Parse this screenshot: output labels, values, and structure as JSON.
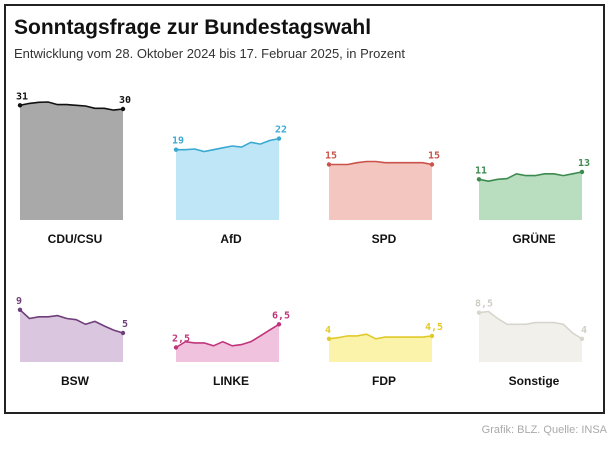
{
  "title": "Sonntagsfrage zur Bundestagswahl",
  "subtitle": "Entwicklung vom 28. Oktober 2024 bis 17. Februar 2025, in Prozent",
  "credit": "Grafik: BLZ. Quelle: INSA",
  "chart_data": {
    "type": "area",
    "title": "Sonntagsfrage zur Bundestagswahl",
    "subtitle": "Entwicklung vom 28. Oktober 2024 bis 17. Februar 2025, in Prozent",
    "xlabel": "",
    "ylabel": "Prozent",
    "x_range": [
      "28. Oktober 2024",
      "17. Februar 2025"
    ],
    "series": [
      {
        "name": "CDU/CSU",
        "start_label": "31",
        "end_label": "30",
        "line": "#111111",
        "fill": "#a9a9a9",
        "labelColor": "#111111",
        "values": [
          31,
          31.5,
          31.8,
          31.9,
          31.2,
          31.2,
          31.0,
          30.8,
          30.2,
          30.2,
          29.7,
          30
        ]
      },
      {
        "name": "AfD",
        "start_label": "19",
        "end_label": "22",
        "line": "#3aa9d2",
        "fill": "#bfe6f6",
        "labelColor": "#3aa9d2",
        "values": [
          19,
          19,
          19.2,
          18.5,
          19,
          19.5,
          20,
          19.7,
          21,
          20.5,
          21.5,
          22
        ]
      },
      {
        "name": "SPD",
        "start_label": "15",
        "end_label": "15",
        "line": "#c9534a",
        "fill": "#f3c6bf",
        "labelColor": "#c9534a",
        "values": [
          15,
          15,
          15,
          15.5,
          15.8,
          15.8,
          15.5,
          15.5,
          15.5,
          15.5,
          15.5,
          15
        ]
      },
      {
        "name": "GRÜNE",
        "start_label": "11",
        "end_label": "13",
        "line": "#3d8a4f",
        "fill": "#b8ddbf",
        "labelColor": "#3d8a4f",
        "values": [
          11,
          10.5,
          11,
          11.2,
          12.5,
          12,
          12,
          12.5,
          12.5,
          12,
          12.5,
          13
        ]
      },
      {
        "name": "BSW",
        "start_label": "9",
        "end_label": "5",
        "line": "#6e3f7a",
        "fill": "#dbc6e0",
        "labelColor": "#6e3f7a",
        "values": [
          9,
          7.5,
          7.8,
          7.8,
          8,
          7.5,
          7.3,
          6.5,
          7,
          6.2,
          5.5,
          5
        ]
      },
      {
        "name": "LINKE",
        "start_label": "2,5",
        "end_label": "6,5",
        "line": "#c0347a",
        "fill": "#f1c2de",
        "labelColor": "#c0347a",
        "values": [
          2.5,
          3.5,
          3.3,
          3.3,
          2.8,
          3.5,
          2.8,
          3,
          3.5,
          4.5,
          5.5,
          6.5
        ]
      },
      {
        "name": "FDP",
        "start_label": "4",
        "end_label": "4,5",
        "line": "#e0c92a",
        "fill": "#fbf3aa",
        "labelColor": "#e0c92a",
        "values": [
          4,
          4.2,
          4.5,
          4.5,
          4.8,
          4,
          4.3,
          4.3,
          4.3,
          4.3,
          4.3,
          4.5
        ]
      },
      {
        "name": "Sonstige",
        "start_label": "8,5",
        "end_label": "4",
        "line": "#d8d6cc",
        "fill": "#f1f0ea",
        "labelColor": "#cfcdc3",
        "values": [
          8.5,
          8.7,
          7.5,
          6.5,
          6.5,
          6.5,
          6.8,
          6.8,
          6.8,
          6.5,
          5,
          4
        ]
      }
    ]
  }
}
